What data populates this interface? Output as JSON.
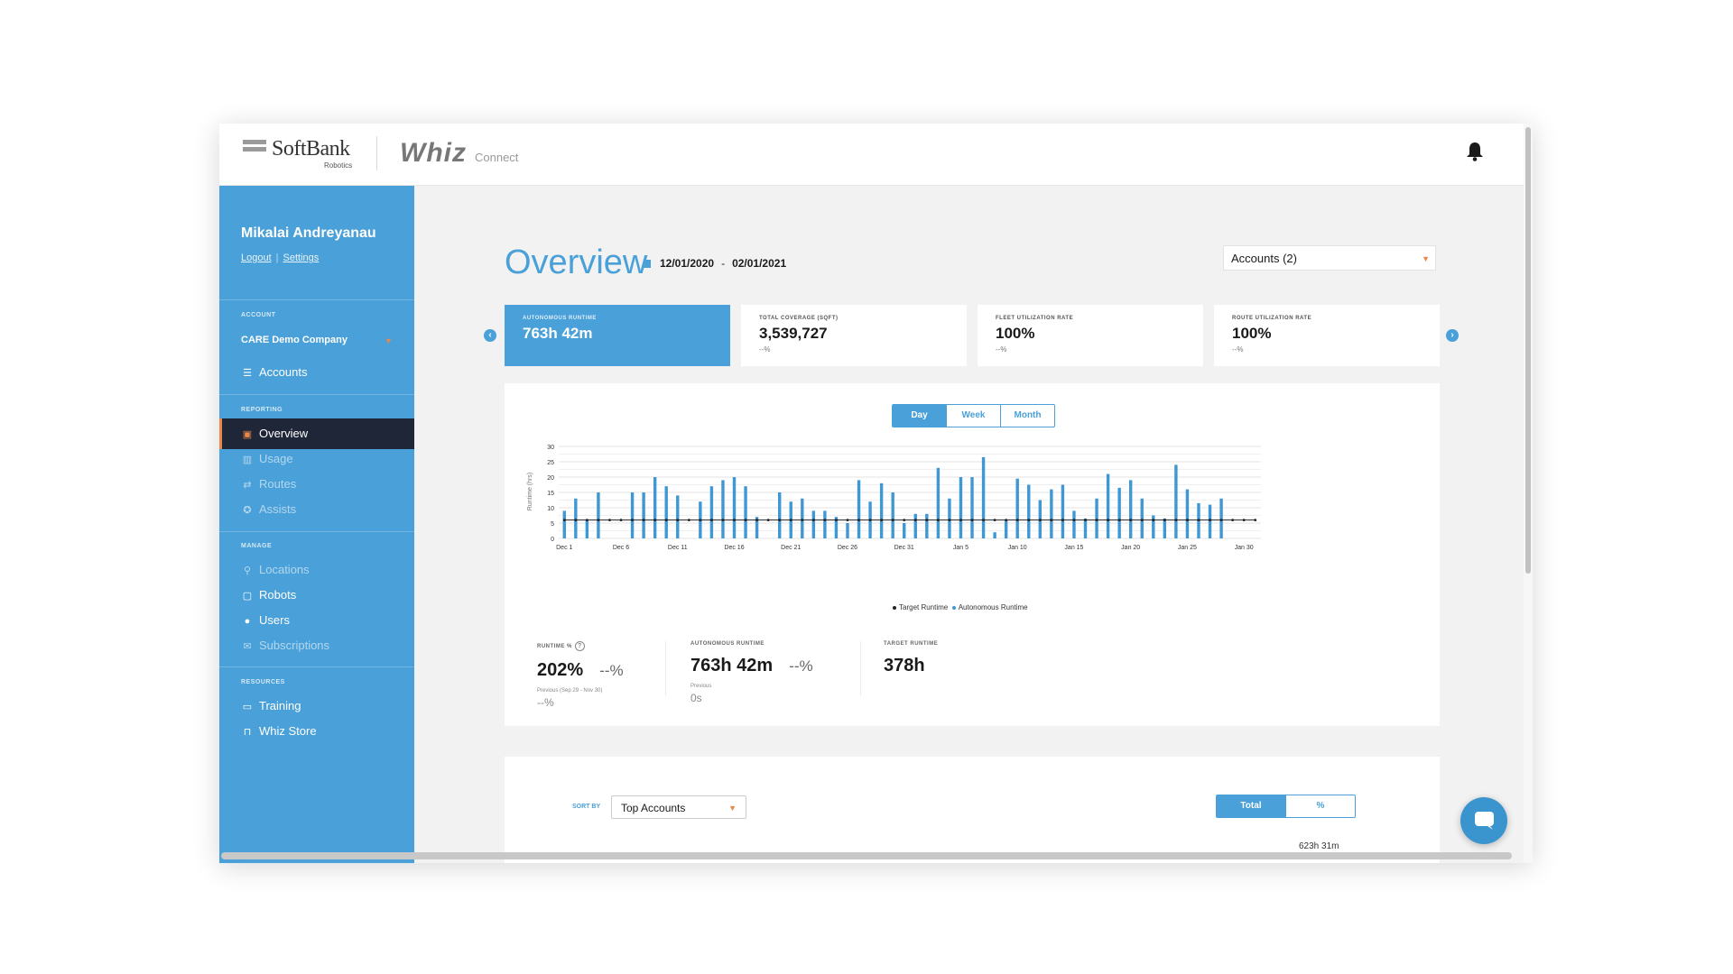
{
  "brand": {
    "softbank": "SoftBank",
    "softbank_sub": "Robotics",
    "whiz": "Whiz",
    "whiz_sub": "Connect"
  },
  "user": {
    "name": "Mikalai Andreyanau",
    "logout": "Logout",
    "settings": "Settings"
  },
  "sidebar": {
    "account_section": "ACCOUNT",
    "account_name": "CARE Demo Company",
    "accounts": "Accounts",
    "reporting_section": "REPORTING",
    "reporting": [
      {
        "label": "Overview",
        "icon": "overview-icon"
      },
      {
        "label": "Usage",
        "icon": "bar-chart-icon"
      },
      {
        "label": "Routes",
        "icon": "routes-icon"
      },
      {
        "label": "Assists",
        "icon": "assist-icon"
      }
    ],
    "manage_section": "MANAGE",
    "manage": [
      {
        "label": "Locations",
        "icon": "location-pin-icon"
      },
      {
        "label": "Robots",
        "icon": "robot-icon"
      },
      {
        "label": "Users",
        "icon": "user-icon"
      },
      {
        "label": "Subscriptions",
        "icon": "chat-bubble-icon"
      }
    ],
    "resources_section": "RESOURCES",
    "resources": [
      {
        "label": "Training",
        "icon": "training-icon"
      },
      {
        "label": "Whiz Store",
        "icon": "cart-icon"
      }
    ]
  },
  "header": {
    "title": "Overview",
    "date_start": "12/01/2020",
    "date_sep": "-",
    "date_end": "02/01/2021",
    "accounts_dropdown": "Accounts (2)"
  },
  "kpis": [
    {
      "label": "AUTONOMOUS RUNTIME",
      "value": "763h 42m",
      "change": ""
    },
    {
      "label": "TOTAL COVERAGE (SQFT)",
      "value": "3,539,727",
      "change": "--%"
    },
    {
      "label": "FLEET UTILIZATION RATE",
      "value": "100%",
      "change": "--%"
    },
    {
      "label": "ROUTE UTILIZATION RATE",
      "value": "100%",
      "change": "--%"
    }
  ],
  "period_toggle": {
    "day": "Day",
    "week": "Week",
    "month": "Month",
    "selected": "Day"
  },
  "chart_data": {
    "type": "bar",
    "ylabel": "Runtime (hrs)",
    "ylim": [
      0,
      30
    ],
    "yticks": [
      0,
      5,
      10,
      15,
      20,
      25,
      30
    ],
    "x_tick_labels": [
      "Dec 1",
      "Dec 6",
      "Dec 11",
      "Dec 16",
      "Dec 21",
      "Dec 26",
      "Dec 31",
      "Jan 5",
      "Jan 10",
      "Jan 15",
      "Jan 20",
      "Jan 25",
      "Jan 30"
    ],
    "x_tick_indices": [
      0,
      5,
      10,
      15,
      20,
      25,
      30,
      35,
      40,
      45,
      50,
      55,
      60
    ],
    "series": [
      {
        "name": "Autonomous Runtime",
        "color": "#3f98d4",
        "values": [
          9,
          13,
          6,
          15,
          0,
          0,
          15,
          15,
          20,
          17,
          14,
          0,
          12,
          17,
          19,
          20,
          17,
          7,
          0,
          15,
          12,
          13,
          9,
          9,
          7,
          5,
          19,
          12,
          18,
          15,
          5,
          8,
          8,
          23,
          13,
          20,
          20,
          26.5,
          2,
          6,
          19.5,
          17.5,
          12.5,
          16,
          17.5,
          9,
          6.5,
          13,
          21,
          16.5,
          19,
          13,
          7.5,
          6.5,
          24,
          16,
          11.5,
          11,
          13,
          0,
          0,
          0
        ]
      },
      {
        "name": "Target Runtime",
        "color": "#222222",
        "values": [
          6,
          6,
          6,
          6,
          6,
          6,
          6,
          6,
          6,
          6,
          6,
          6,
          6,
          6,
          6,
          6,
          6,
          6,
          6,
          6,
          6,
          6,
          6,
          6,
          6,
          6,
          6,
          6,
          6,
          6,
          6,
          6,
          6,
          6,
          6,
          6,
          6,
          6,
          6,
          6,
          6,
          6,
          6,
          6,
          6,
          6,
          6,
          6,
          6,
          6,
          6,
          6,
          6,
          6,
          6,
          6,
          6,
          6,
          6,
          6,
          6,
          6
        ]
      }
    ],
    "legend": [
      "Target Runtime",
      "Autonomous Runtime"
    ]
  },
  "stats": {
    "runtime_pct": {
      "label": "RUNTIME %",
      "value": "202%",
      "change": "--%",
      "previous_label": "Previous (Sep 29 - Nov 30)",
      "previous": "--%"
    },
    "autonomous": {
      "label": "AUTONOMOUS RUNTIME",
      "value": "763h 42m",
      "change": "--%",
      "previous_label": "Previous",
      "previous": "0s"
    },
    "target": {
      "label": "TARGET RUNTIME",
      "value": "378h"
    }
  },
  "bottom": {
    "sort_by": "SORT BY",
    "sort_value": "Top Accounts",
    "total": "Total",
    "percent": "%",
    "cut_value": "623h 31m"
  },
  "colors": {
    "primary": "#4aa0d8",
    "accent": "#e8884a",
    "active_nav": "#1e2637"
  }
}
